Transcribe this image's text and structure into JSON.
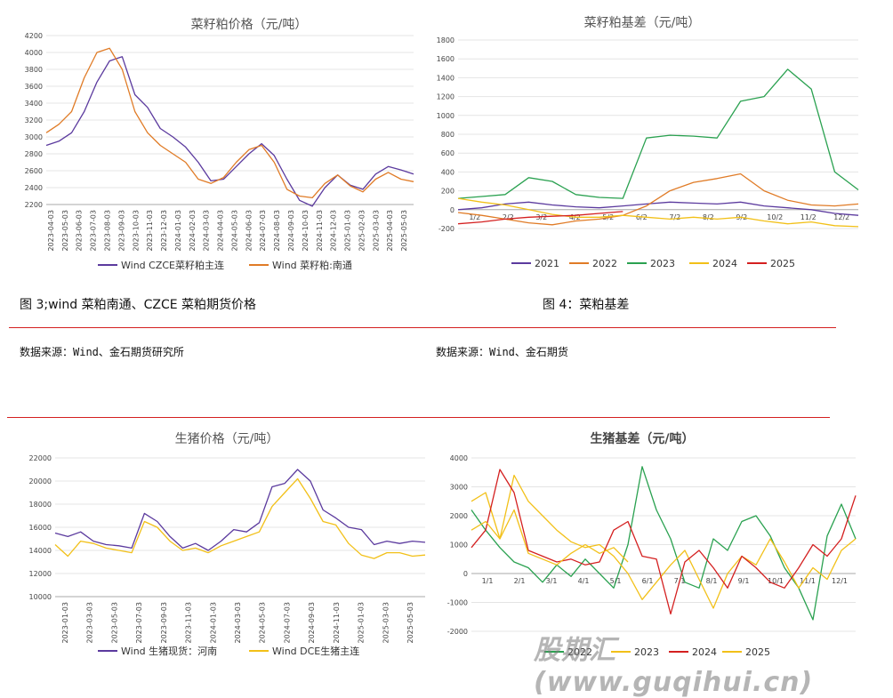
{
  "captions": {
    "fig3": "图 3;wind 菜粕南通、CZCE 菜粕期货价格",
    "fig4": "图 4：菜粕基差",
    "src_left": "数据来源：Wind、金石期货研究所",
    "src_right": "数据来源：Wind、金石期货"
  },
  "watermark": "股期汇(www.guqihui.cn)",
  "colors": {
    "purple": "#5b3a9e",
    "orange": "#e07b26",
    "green": "#2aa150",
    "gold": "#f2c018",
    "red": "#d42020",
    "rule": "#d42020"
  },
  "chart_data": [
    {
      "id": "c1",
      "type": "line",
      "title": "菜籽粕价格（元/吨）",
      "ylim": [
        2200,
        4200
      ],
      "yticks": [
        2200,
        2400,
        2600,
        2800,
        3000,
        3200,
        3400,
        3600,
        3800,
        4000,
        4200
      ],
      "xlabels": [
        "2023-04-03",
        "2023-05-03",
        "2023-06-03",
        "2023-07-03",
        "2023-08-03",
        "2023-09-03",
        "2023-10-03",
        "2023-11-03",
        "2023-12-03",
        "2024-01-03",
        "2024-02-03",
        "2024-03-03",
        "2024-04-03",
        "2024-05-03",
        "2024-06-03",
        "2024-07-03",
        "2024-08-03",
        "2024-09-03",
        "2024-10-03",
        "2024-11-03",
        "2024-12-03",
        "2025-01-03",
        "2025-02-03",
        "2025-03-03",
        "2025-04-03",
        "2025-05-03"
      ],
      "legend": [
        "Wind CZCE菜籽粕主连",
        "Wind 菜籽粕:南通"
      ],
      "series": [
        {
          "name": "Wind CZCE菜籽粕主连",
          "color": "purple",
          "values": [
            2900,
            2950,
            3050,
            3300,
            3650,
            3900,
            3950,
            3500,
            3350,
            3100,
            3000,
            2880,
            2700,
            2480,
            2500,
            2650,
            2800,
            2920,
            2780,
            2500,
            2250,
            2180,
            2400,
            2550,
            2430,
            2380,
            2560,
            2650,
            2610,
            2560
          ]
        },
        {
          "name": "Wind 菜籽粕:南通",
          "color": "orange",
          "values": [
            3050,
            3150,
            3300,
            3700,
            4000,
            4050,
            3800,
            3300,
            3050,
            2900,
            2800,
            2700,
            2500,
            2450,
            2520,
            2700,
            2850,
            2900,
            2700,
            2380,
            2300,
            2280,
            2450,
            2550,
            2420,
            2350,
            2500,
            2580,
            2500,
            2470
          ]
        }
      ]
    },
    {
      "id": "c2",
      "type": "line",
      "title": "菜籽粕基差（元/吨）",
      "ylim": [
        -200,
        1800
      ],
      "yticks": [
        -200,
        0,
        200,
        400,
        600,
        800,
        1000,
        1200,
        1400,
        1600,
        1800
      ],
      "xlabels": [
        "1/2",
        "2/2",
        "3/2",
        "4/2",
        "5/2",
        "6/2",
        "7/2",
        "8/2",
        "9/2",
        "10/2",
        "11/2",
        "12/2"
      ],
      "legend": [
        "2021",
        "2022",
        "2023",
        "2024",
        "2025"
      ],
      "series": [
        {
          "name": "2021",
          "color": "purple",
          "values": [
            0,
            20,
            60,
            80,
            50,
            30,
            20,
            40,
            60,
            80,
            70,
            60,
            80,
            40,
            20,
            0,
            -40,
            -60
          ]
        },
        {
          "name": "2022",
          "color": "orange",
          "values": [
            -30,
            -60,
            -100,
            -140,
            -160,
            -120,
            -100,
            -60,
            40,
            200,
            290,
            330,
            380,
            200,
            100,
            50,
            40,
            60
          ]
        },
        {
          "name": "2023",
          "color": "green",
          "values": [
            120,
            140,
            160,
            340,
            300,
            160,
            130,
            120,
            760,
            790,
            780,
            760,
            1150,
            1200,
            1490,
            1280,
            400,
            210
          ]
        },
        {
          "name": "2024",
          "color": "gold",
          "values": [
            120,
            80,
            50,
            0,
            -50,
            -80,
            -80,
            -60,
            -80,
            -100,
            -80,
            -100,
            -80,
            -120,
            -150,
            -130,
            -170,
            -180
          ]
        },
        {
          "name": "2025",
          "color": "red",
          "values": [
            -150,
            -130,
            -100,
            -80,
            -70,
            -60,
            -40,
            -20
          ]
        }
      ]
    },
    {
      "id": "c3",
      "type": "line",
      "title": "生猪价格（元/吨）",
      "ylim": [
        10000,
        22000
      ],
      "yticks": [
        10000,
        12000,
        14000,
        16000,
        18000,
        20000,
        22000
      ],
      "xlabels": [
        "2023-01-03",
        "2023-03-03",
        "2023-05-03",
        "2023-07-03",
        "2023-09-03",
        "2023-11-03",
        "2024-01-03",
        "2024-03-03",
        "2024-05-03",
        "2024-07-03",
        "2024-09-03",
        "2024-11-03",
        "2025-01-03",
        "2025-03-03",
        "2025-05-03"
      ],
      "legend": [
        "Wind 生猪现货：河南",
        "Wind DCE生猪主连"
      ],
      "series": [
        {
          "name": "Wind 生猪现货：河南",
          "color": "purple",
          "values": [
            15500,
            15200,
            15600,
            14800,
            14500,
            14400,
            14200,
            17200,
            16500,
            15200,
            14200,
            14600,
            14000,
            14800,
            15800,
            15600,
            16400,
            19500,
            19800,
            21000,
            20000,
            17500,
            16800,
            16000,
            15800,
            14500,
            14800,
            14600,
            14800,
            14700
          ]
        },
        {
          "name": "Wind DCE生猪主连",
          "color": "gold",
          "values": [
            14500,
            13500,
            14800,
            14600,
            14200,
            14000,
            13800,
            16500,
            16000,
            14800,
            14000,
            14200,
            13800,
            14400,
            14800,
            15200,
            15600,
            17800,
            19000,
            20200,
            18500,
            16500,
            16200,
            14600,
            13600,
            13300,
            13800,
            13800,
            13500,
            13600
          ]
        }
      ]
    },
    {
      "id": "c4",
      "type": "line",
      "title": "生猪基差（元/吨）",
      "ylim": [
        -2000,
        4000
      ],
      "yticks": [
        -2000,
        -1000,
        0,
        1000,
        2000,
        3000,
        4000
      ],
      "xlabels": [
        "1/1",
        "2/1",
        "3/1",
        "4/1",
        "5/1",
        "6/1",
        "7/1",
        "8/1",
        "9/1",
        "10/1",
        "11/1",
        "12/1"
      ],
      "legend": [
        "2022",
        "2023",
        "2024",
        "2025"
      ],
      "series": [
        {
          "name": "2022",
          "color": "green",
          "values": [
            2200,
            1500,
            900,
            400,
            200,
            -300,
            300,
            -100,
            500,
            0,
            -500,
            1000,
            3700,
            2200,
            1200,
            -300,
            -500,
            1200,
            800,
            1800,
            2000,
            1300,
            200,
            -500,
            -1600,
            1300,
            2400,
            1200
          ]
        },
        {
          "name": "2023",
          "color": "gold",
          "values": [
            2500,
            2800,
            1200,
            3400,
            2500,
            2000,
            1500,
            1100,
            900,
            1000,
            600,
            0,
            -900,
            -300,
            300,
            800,
            -200,
            -1200,
            0,
            600,
            300,
            1200,
            400,
            -500,
            200,
            -200,
            800,
            1200
          ]
        },
        {
          "name": "2024",
          "color": "red",
          "values": [
            900,
            1500,
            3600,
            2800,
            800,
            600,
            400,
            500,
            300,
            400,
            1500,
            1800,
            600,
            500,
            -1400,
            400,
            800,
            200,
            -500,
            600,
            200,
            -300,
            -500,
            200,
            1000,
            600,
            1200,
            2700
          ]
        },
        {
          "name": "2025",
          "color": "gold",
          "values": [
            1500,
            1800,
            1200,
            2200,
            700,
            500,
            300,
            700,
            1000,
            700,
            900,
            400
          ]
        }
      ]
    }
  ]
}
